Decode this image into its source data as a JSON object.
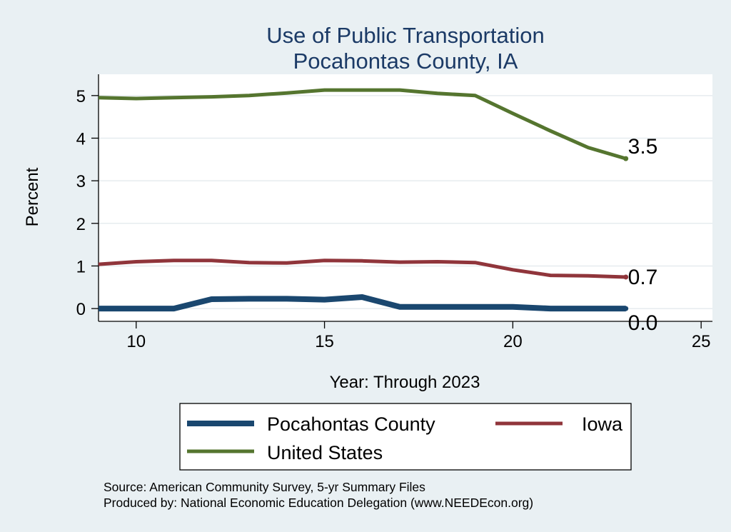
{
  "chart_data": {
    "type": "line",
    "title": [
      "Use of Public Transportation",
      "Pocahontas County, IA"
    ],
    "xlabel": "Year: Through 2023",
    "ylabel": "Percent",
    "xlim": [
      9,
      25.3
    ],
    "ylim": [
      -0.3,
      5.5
    ],
    "xticks": [
      10,
      15,
      20,
      25
    ],
    "yticks": [
      0,
      1,
      2,
      3,
      4,
      5
    ],
    "grid": true,
    "legend_position": "bottom",
    "x": [
      9,
      10,
      11,
      12,
      13,
      14,
      15,
      16,
      17,
      18,
      19,
      20,
      21,
      22,
      23
    ],
    "series": [
      {
        "name": "Pocahontas County",
        "color": "#1a476f",
        "values": [
          0.0,
          0.0,
          0.0,
          0.22,
          0.23,
          0.23,
          0.21,
          0.27,
          0.04,
          0.04,
          0.04,
          0.04,
          0.0,
          0.0,
          0.0
        ],
        "end_label": "0.0"
      },
      {
        "name": "Iowa",
        "color": "#90353b",
        "values": [
          1.04,
          1.1,
          1.13,
          1.13,
          1.08,
          1.07,
          1.13,
          1.12,
          1.09,
          1.1,
          1.08,
          0.91,
          0.78,
          0.77,
          0.74
        ],
        "end_label": "0.7"
      },
      {
        "name": "United States",
        "color": "#55752f",
        "values": [
          4.95,
          4.93,
          4.95,
          4.97,
          5.0,
          5.06,
          5.13,
          5.13,
          5.13,
          5.05,
          5.0,
          4.58,
          4.17,
          3.78,
          3.52
        ],
        "end_label": "3.5"
      }
    ]
  },
  "footer": {
    "source": "Source: American Community Survey, 5-yr Summary Files",
    "produced_by": "Produced by: National Economic Education Delegation (www.NEEDEcon.org)"
  }
}
